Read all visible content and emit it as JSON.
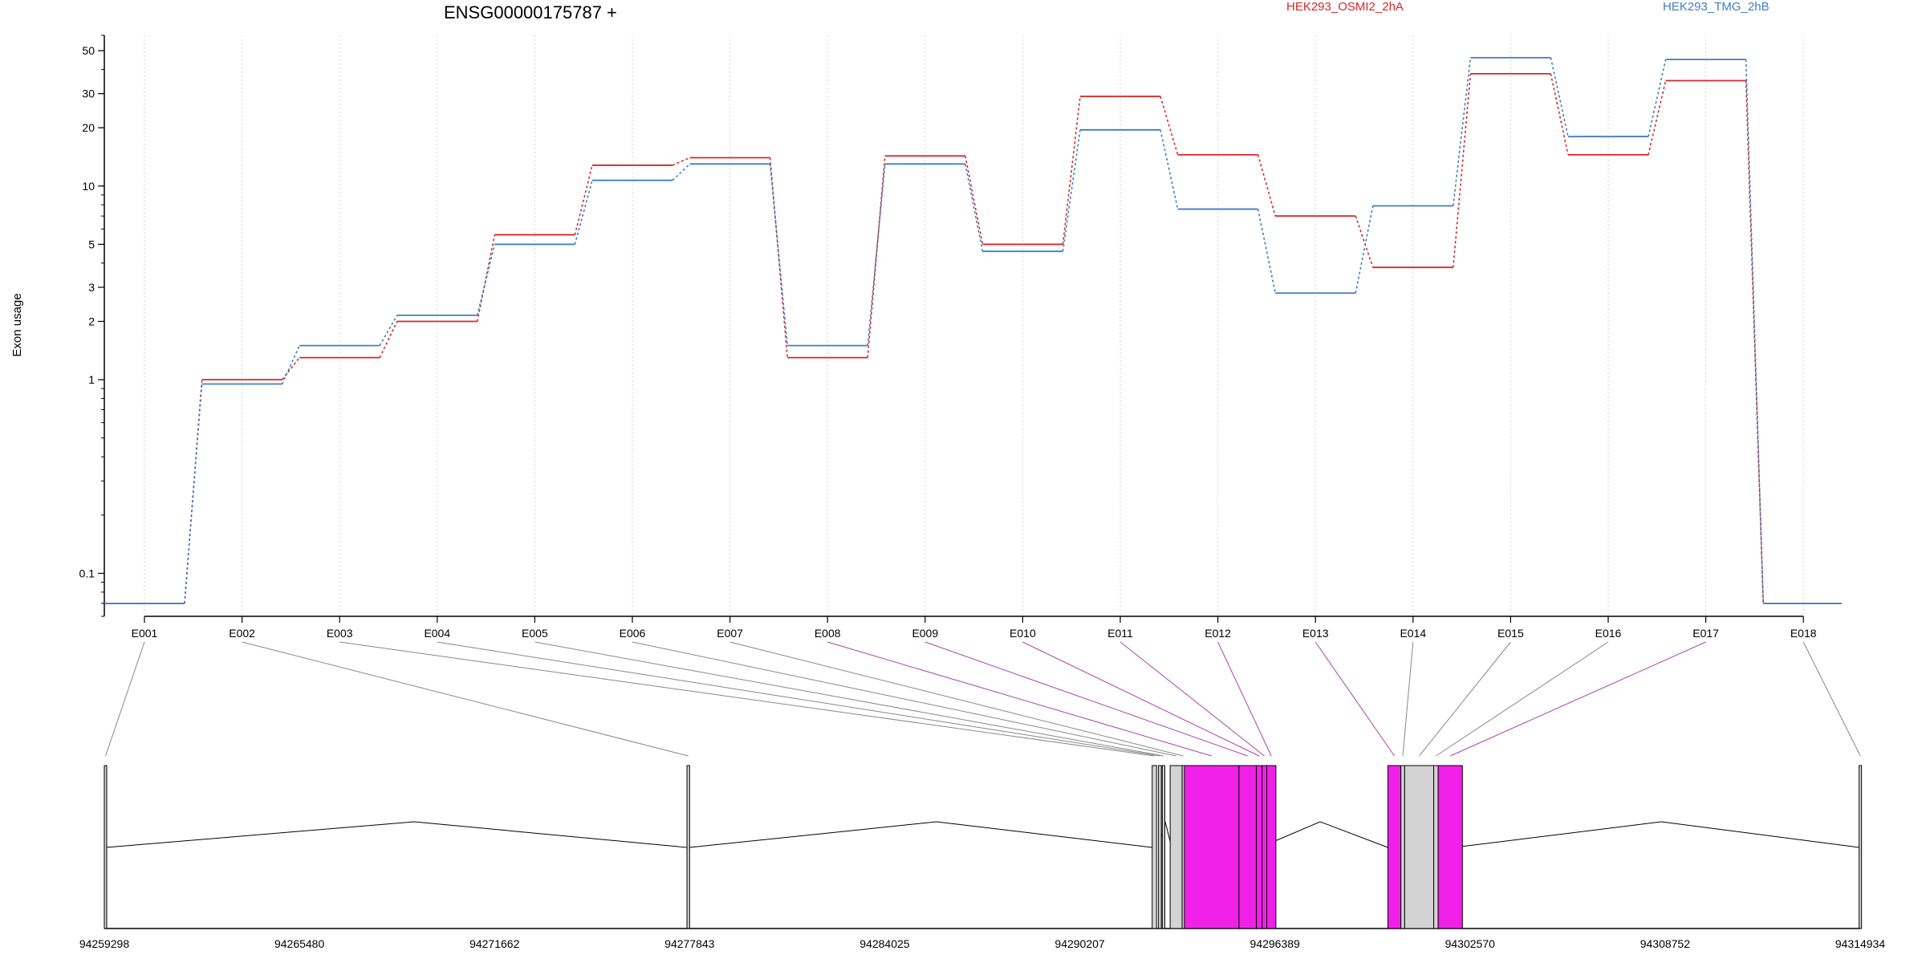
{
  "chart_data": {
    "type": "line",
    "title": "ENSG00000175787 +",
    "ylabel": "Exon usage",
    "xlabel": "",
    "y_scale": "log",
    "y_ticks": [
      "0.1",
      "1",
      "2",
      "3",
      "5",
      "10",
      "20",
      "30",
      "50"
    ],
    "categories": [
      "E001",
      "E002",
      "E003",
      "E004",
      "E005",
      "E006",
      "E007",
      "E008",
      "E009",
      "E010",
      "E011",
      "E012",
      "E013",
      "E014",
      "E015",
      "E016",
      "E017",
      "E018"
    ],
    "series": [
      {
        "name": "HEK293_OSMI2_2hA",
        "color": "#d62728",
        "values": [
          0.07,
          1.0,
          1.3,
          2.0,
          5.6,
          12.8,
          14.0,
          1.3,
          14.3,
          5.0,
          29.0,
          14.5,
          7.0,
          3.8,
          38.0,
          14.5,
          35.0,
          0.07
        ]
      },
      {
        "name": "HEK293_TMG_2hB",
        "color": "#3b7fc4",
        "values": [
          0.07,
          0.95,
          1.5,
          2.15,
          5.0,
          10.7,
          13.0,
          1.5,
          13.0,
          4.6,
          19.5,
          7.6,
          2.8,
          7.9,
          46.0,
          18.0,
          45.0,
          0.07
        ]
      }
    ],
    "gene_model": {
      "genomic_ticks": [
        "94259298",
        "94265480",
        "94271662",
        "94277843",
        "94284025",
        "94290207",
        "94296389",
        "94302570",
        "94308752",
        "94314934"
      ],
      "exon_colors": [
        "#d3d3d3",
        "#d3d3d3",
        "#d3d3d3",
        "#d3d3d3",
        "#d3d3d3",
        "#d3d3d3",
        "#d3d3d3",
        "#d3d3d3",
        "#d3d3d3",
        "#d3d3d3",
        "#f020e8",
        "#f020e8",
        "#f020e8",
        "#f020e8",
        "#d3d3d3",
        "#d3d3d3",
        "#f020e8",
        "#d3d3d3"
      ]
    }
  }
}
